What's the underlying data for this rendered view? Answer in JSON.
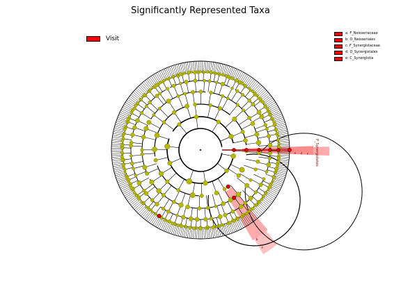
{
  "title": "Significantly Represented Taxa",
  "visit_legend": {
    "label": "Visit",
    "color": "#ff0000"
  },
  "clade_legend": [
    {
      "key": "a",
      "label": "a: F_Neisseriaceae"
    },
    {
      "key": "b",
      "label": "b: O_Neisseriales"
    },
    {
      "key": "c",
      "label": "c: F_Synergistaceae"
    },
    {
      "key": "d",
      "label": "d: O_Synergistales"
    },
    {
      "key": "e",
      "label": "e: C_Synergistia"
    }
  ],
  "highlight_labels": {
    "synergistales_side": "P_Synergistetes",
    "east_markers": [
      "e",
      "d",
      "c"
    ],
    "southeast_markers": [
      "b",
      "a"
    ]
  },
  "colors": {
    "node": "#b5b800",
    "node_stroke": "#6b6b00",
    "highlight_node": "#e00000",
    "highlight_band": "#ff6666",
    "lines": "#000000"
  }
}
